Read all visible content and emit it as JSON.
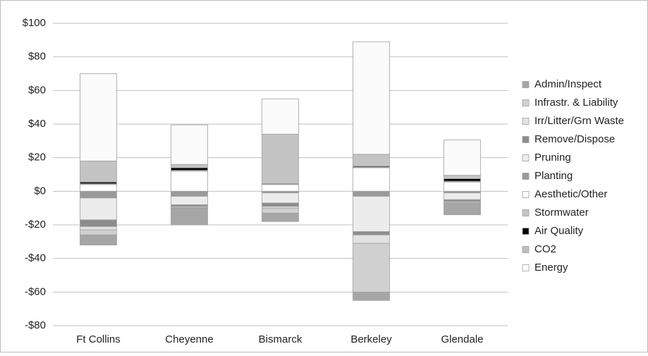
{
  "chart_data": {
    "type": "stacked_bar",
    "categories": [
      "Ft Collins",
      "Cheyenne",
      "Bismarck",
      "Berkeley",
      "Glendale"
    ],
    "series": [
      {
        "name": "Admin/Inspect",
        "color": "#a6a6a6",
        "values": [
          -6,
          -10,
          -5,
          -5,
          -7
        ]
      },
      {
        "name": "Infrastr. & Liability",
        "color": "#d0d0d0",
        "values": [
          -3,
          -0.5,
          -3,
          -29,
          -0.5
        ]
      },
      {
        "name": "Irr/Litter/Grn Waste",
        "color": "#e2e2e2",
        "values": [
          -2,
          -0.5,
          -1,
          -5,
          -0.5
        ]
      },
      {
        "name": "Remove/Dispose",
        "color": "#8c8c8c",
        "values": [
          -4,
          -1,
          -2,
          -2,
          -1
        ]
      },
      {
        "name": "Pruning",
        "color": "#ececec",
        "values": [
          -13,
          -5,
          -6,
          -21,
          -4
        ]
      },
      {
        "name": "Planting",
        "color": "#9a9a9a",
        "values": [
          -4,
          -3,
          -1,
          -3,
          -1
        ]
      },
      {
        "name": "Aesthetic/Other",
        "color": "#fbfbfb",
        "values": [
          52,
          23.5,
          21,
          67,
          21
        ]
      },
      {
        "name": "Stormwater",
        "color": "#c4c4c4",
        "values": [
          12.5,
          2,
          29.4,
          7,
          2
        ]
      },
      {
        "name": "Air Quality",
        "color": "#000000",
        "values": [
          1,
          1.5,
          0.3,
          0.5,
          1.5
        ]
      },
      {
        "name": "CO2",
        "color": "#bdbdbd",
        "values": [
          0.5,
          0.5,
          0.3,
          0.5,
          0.5
        ]
      },
      {
        "name": "Energy",
        "color": "#ffffff",
        "values": [
          4,
          12,
          4,
          14,
          5.5
        ]
      }
    ],
    "ylim": [
      -80,
      100
    ],
    "yticks": [
      {
        "value": -80,
        "label": "-$80"
      },
      {
        "value": -60,
        "label": "-$60"
      },
      {
        "value": -40,
        "label": "-$40"
      },
      {
        "value": -20,
        "label": "-$20"
      },
      {
        "value": 0,
        "label": "$0"
      },
      {
        "value": 20,
        "label": "$20"
      },
      {
        "value": 40,
        "label": "$40"
      },
      {
        "value": 60,
        "label": "$60"
      },
      {
        "value": 80,
        "label": "$80"
      },
      {
        "value": 100,
        "label": "$100"
      }
    ],
    "grid": true,
    "legend": "right"
  }
}
